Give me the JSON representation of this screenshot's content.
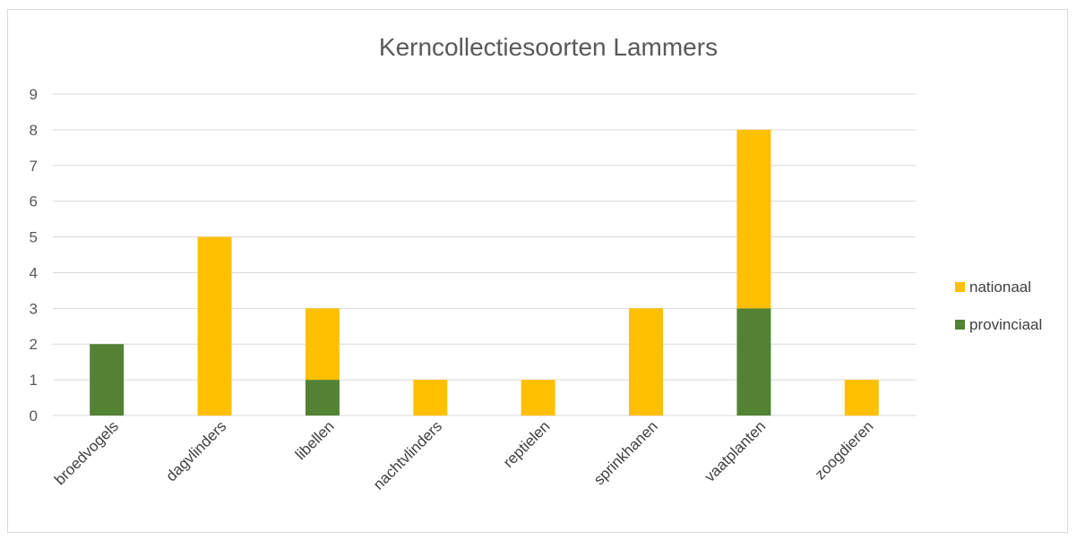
{
  "chart_data": {
    "type": "bar",
    "stacked": true,
    "title": "Kerncollectiesoorten Lammers",
    "xlabel": "",
    "ylabel": "",
    "categories": [
      "broedvogels",
      "dagvlinders",
      "libellen",
      "nachtvlinders",
      "reptielen",
      "sprinkhanen",
      "vaatplanten",
      "zoogdieren"
    ],
    "series": [
      {
        "name": "provinciaal",
        "color": "#548235",
        "values": [
          2,
          0,
          1,
          0,
          0,
          0,
          3,
          0
        ]
      },
      {
        "name": "nationaal",
        "color": "#ffc000",
        "values": [
          0,
          5,
          2,
          1,
          1,
          3,
          5,
          1
        ]
      }
    ],
    "ylim": [
      0,
      9
    ],
    "yticks": [
      0,
      1,
      2,
      3,
      4,
      5,
      6,
      7,
      8,
      9
    ],
    "grid": true,
    "legend_position": "right",
    "legend_order": [
      "nationaal",
      "provinciaal"
    ]
  }
}
